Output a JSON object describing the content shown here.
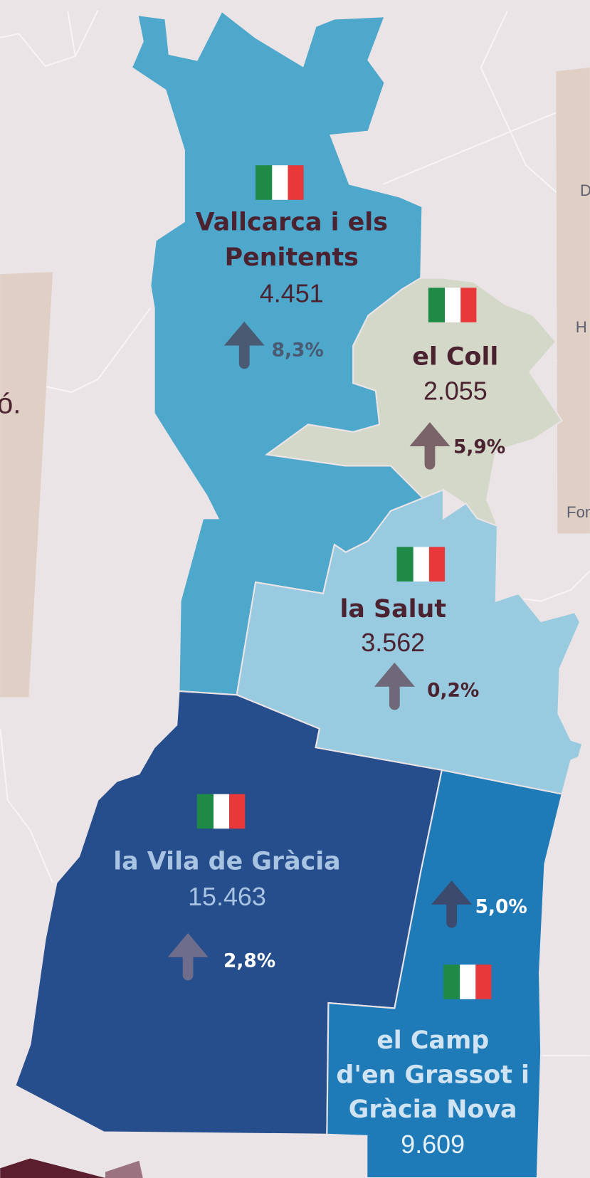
{
  "districts": [
    {
      "name_lines": [
        "Vallcarca i els",
        "Penitents"
      ],
      "population": "4.451",
      "change": "8,3%"
    },
    {
      "name_lines": [
        "el Coll"
      ],
      "population": "2.055",
      "change": "5,9%"
    },
    {
      "name_lines": [
        "la Salut"
      ],
      "population": "3.562",
      "change": "0,2%"
    },
    {
      "name_lines": [
        "la Vila de Gràcia"
      ],
      "population": "15.463",
      "change": "2,8%"
    },
    {
      "name_lines": [
        "el Camp",
        "d'en Grassot i",
        "Gràcia Nova"
      ],
      "population": "9.609",
      "change": "5,0%"
    }
  ],
  "edge_labels": [
    "D",
    "H",
    "Fon",
    "ó."
  ]
}
